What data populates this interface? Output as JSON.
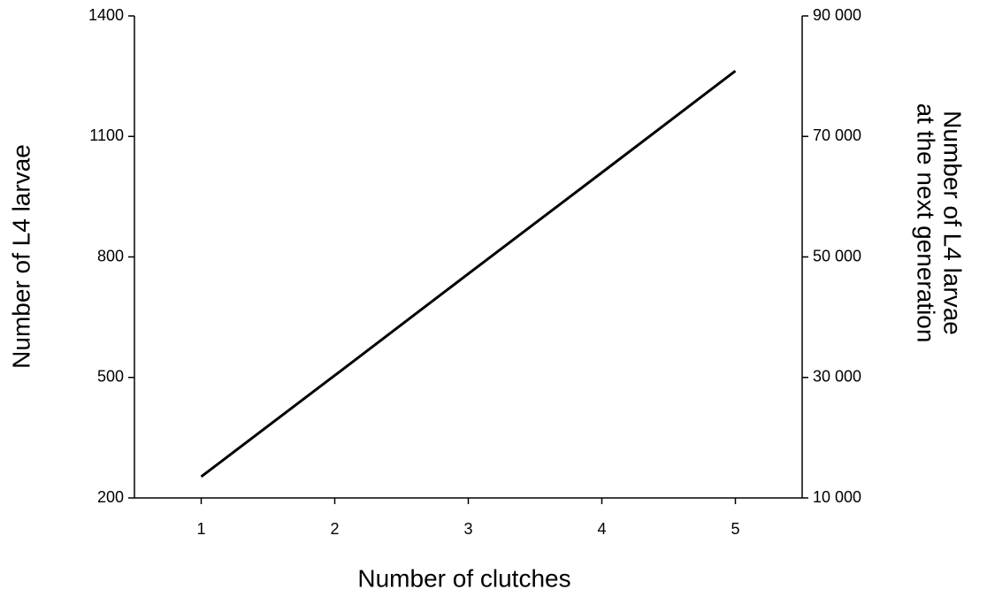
{
  "chart_data": {
    "type": "line",
    "xlabel": "Number of clutches",
    "ylabel": "Number of L4 larvae",
    "y2label": [
      "Number of L4 larvae",
      "at the next generation"
    ],
    "x": [
      1,
      2,
      3,
      4,
      5
    ],
    "values": [
      253,
      505,
      758,
      1010,
      1263
    ],
    "color": "#000000",
    "xlim": [
      0.5,
      5.5
    ],
    "xticks": [
      1,
      2,
      3,
      4,
      5
    ],
    "ylim": [
      200,
      1400
    ],
    "yticks": [
      200,
      500,
      800,
      1100,
      1400
    ],
    "y2lim": [
      10000,
      90000
    ],
    "y2ticks": [
      {
        "value": 10000,
        "label": "10 000"
      },
      {
        "value": 30000,
        "label": "30 000"
      },
      {
        "value": 50000,
        "label": "50 000"
      },
      {
        "value": 70000,
        "label": "70 000"
      },
      {
        "value": 90000,
        "label": "90 000"
      }
    ],
    "grid": false
  }
}
